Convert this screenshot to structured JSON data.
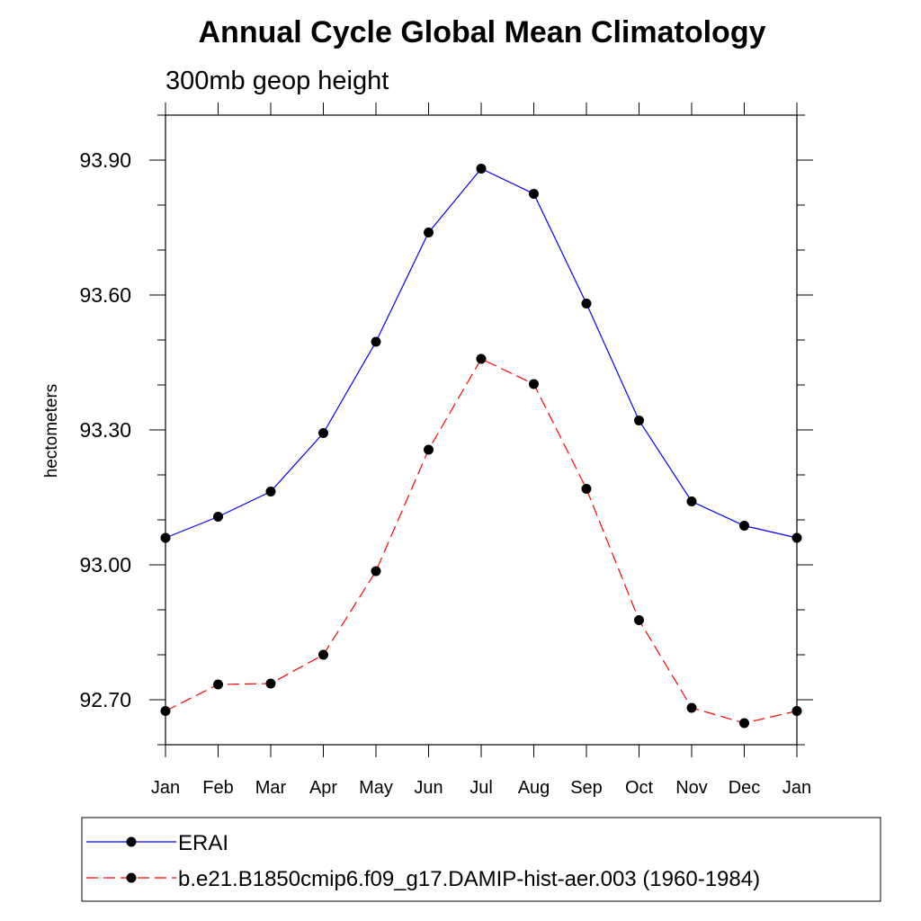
{
  "chart_data": {
    "type": "line",
    "title": "Annual Cycle Global Mean Climatology",
    "subtitle": "300mb geop height",
    "ylabel": "hectometers",
    "xlabel": "",
    "categories": [
      "Jan",
      "Feb",
      "Mar",
      "Apr",
      "May",
      "Jun",
      "Jul",
      "Aug",
      "Sep",
      "Oct",
      "Nov",
      "Dec",
      "Jan"
    ],
    "ylim": [
      92.6,
      94.0
    ],
    "yticks": [
      92.7,
      93.0,
      93.3,
      93.6,
      93.9
    ],
    "ytick_labels": [
      "92.70",
      "93.00",
      "93.30",
      "93.60",
      "93.90"
    ],
    "grid": false,
    "legend_position": "bottom",
    "series": [
      {
        "name": "ERAI",
        "color": "#0000ff",
        "line_style": "solid",
        "marker": "filled-circle",
        "values": [
          93.06,
          93.107,
          93.163,
          93.293,
          93.496,
          93.739,
          93.881,
          93.825,
          93.581,
          93.321,
          93.141,
          93.087,
          93.06
        ]
      },
      {
        "name": "b.e21.B1850cmip6.f09_g17.DAMIP-hist-aer.003 (1960-1984)",
        "color": "#ff0000",
        "line_style": "dashed",
        "marker": "filled-circle",
        "values": [
          92.675,
          92.734,
          92.736,
          92.8,
          92.986,
          93.256,
          93.458,
          93.402,
          93.169,
          92.877,
          92.682,
          92.648,
          92.675
        ]
      }
    ]
  }
}
